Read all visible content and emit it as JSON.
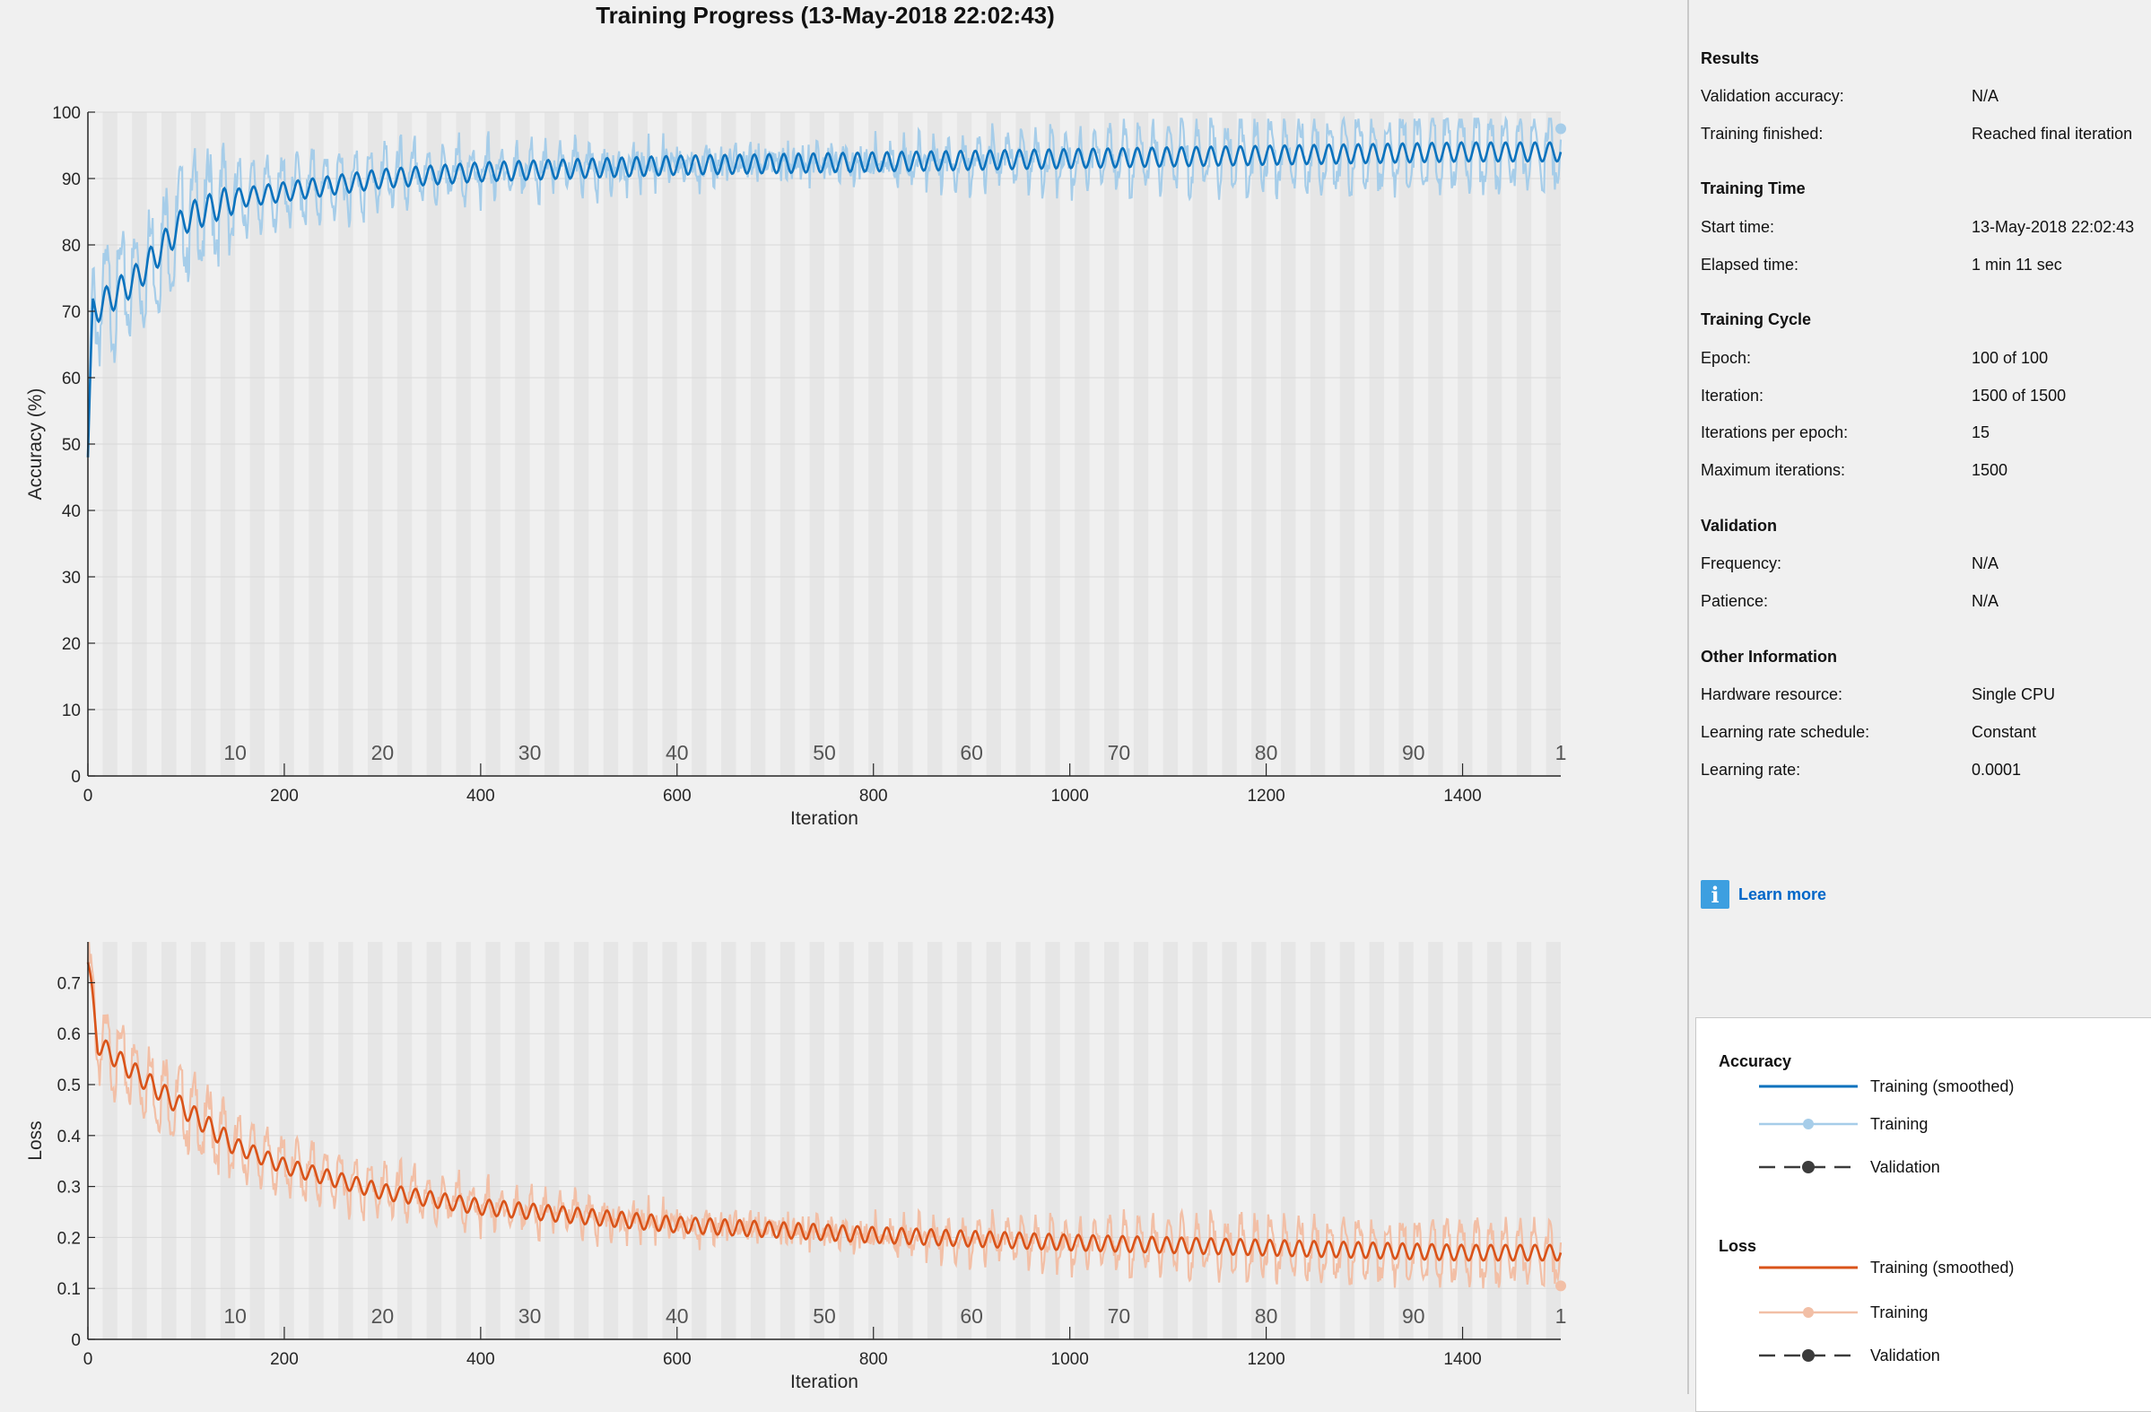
{
  "window_title": "Training Progress (13-May-2018 22:02:43)",
  "colors": {
    "accuracy_smoothed": "#0b72bd",
    "accuracy_raw": "#a6cde9",
    "loss_smoothed": "#d95319",
    "loss_raw": "#f2bfa6",
    "epoch_band": "#e6e6e6",
    "validation": "#3c3c3c",
    "link": "#0066c8"
  },
  "chart_data": [
    {
      "type": "line",
      "name": "accuracy",
      "xlabel": "Iteration",
      "ylabel": "Accuracy (%)",
      "xlim": [
        0,
        1500
      ],
      "ylim": [
        0,
        100
      ],
      "xticks": [
        0,
        200,
        400,
        600,
        800,
        1000,
        1200,
        1400
      ],
      "yticks": [
        0,
        10,
        20,
        30,
        40,
        50,
        60,
        70,
        80,
        90,
        100
      ],
      "epoch_labels": [
        "10",
        "20",
        "30",
        "40",
        "50",
        "60",
        "70",
        "80",
        "90",
        "1"
      ],
      "epochs": 100,
      "iterations_per_epoch": 15,
      "shape": {
        "start": 50,
        "end": 94,
        "rate": 0.012
      },
      "smoothed_anchor": [
        [
          0,
          48
        ],
        [
          5,
          70
        ],
        [
          50,
          75
        ],
        [
          100,
          84
        ],
        [
          150,
          87
        ],
        [
          200,
          88
        ],
        [
          300,
          90
        ],
        [
          400,
          91
        ],
        [
          600,
          92
        ],
        [
          800,
          92.5
        ],
        [
          1000,
          93
        ],
        [
          1200,
          93.5
        ],
        [
          1400,
          94
        ],
        [
          1500,
          94
        ]
      ],
      "series": [
        {
          "name": "Training (smoothed)"
        },
        {
          "name": "Training"
        }
      ],
      "final_point": {
        "x": 1500,
        "y": 97.5
      }
    },
    {
      "type": "line",
      "name": "loss",
      "xlabel": "Iteration",
      "ylabel": "Loss",
      "xlim": [
        0,
        1500
      ],
      "ylim": [
        0,
        0.78
      ],
      "xticks": [
        0,
        200,
        400,
        600,
        800,
        1000,
        1200,
        1400
      ],
      "yticks": [
        0,
        0.1,
        0.2,
        0.3,
        0.4,
        0.5,
        0.6,
        0.7
      ],
      "ytick_labels": [
        "0",
        "0.1",
        "0.2",
        "0.3",
        "0.4",
        "0.5",
        "0.6",
        "0.7"
      ],
      "epoch_labels": [
        "10",
        "20",
        "30",
        "40",
        "50",
        "60",
        "70",
        "80",
        "90",
        "1"
      ],
      "epochs": 100,
      "iterations_per_epoch": 15,
      "smoothed_anchor": [
        [
          0,
          0.74
        ],
        [
          10,
          0.58
        ],
        [
          50,
          0.52
        ],
        [
          100,
          0.45
        ],
        [
          150,
          0.38
        ],
        [
          200,
          0.34
        ],
        [
          300,
          0.29
        ],
        [
          400,
          0.26
        ],
        [
          600,
          0.225
        ],
        [
          800,
          0.205
        ],
        [
          1000,
          0.19
        ],
        [
          1200,
          0.18
        ],
        [
          1400,
          0.17
        ],
        [
          1500,
          0.17
        ]
      ],
      "series": [
        {
          "name": "Training (smoothed)"
        },
        {
          "name": "Training"
        }
      ],
      "final_point": {
        "x": 1500,
        "y": 0.105
      }
    }
  ],
  "info": {
    "results": {
      "title": "Results",
      "rows": [
        {
          "label": "Validation accuracy:",
          "value": "N/A"
        },
        {
          "label": "Training finished:",
          "value": "Reached final iteration"
        }
      ]
    },
    "training_time": {
      "title": "Training Time",
      "rows": [
        {
          "label": "Start time:",
          "value": "13-May-2018 22:02:43"
        },
        {
          "label": "Elapsed time:",
          "value": "1 min 11 sec"
        }
      ]
    },
    "training_cycle": {
      "title": "Training Cycle",
      "rows": [
        {
          "label": "Epoch:",
          "value": "100 of 100"
        },
        {
          "label": "Iteration:",
          "value": "1500 of 1500"
        },
        {
          "label": "Iterations per epoch:",
          "value": "15"
        },
        {
          "label": "Maximum iterations:",
          "value": "1500"
        }
      ]
    },
    "validation": {
      "title": "Validation",
      "rows": [
        {
          "label": "Frequency:",
          "value": "N/A"
        },
        {
          "label": "Patience:",
          "value": "N/A"
        }
      ]
    },
    "other": {
      "title": "Other Information",
      "rows": [
        {
          "label": "Hardware resource:",
          "value": "Single CPU"
        },
        {
          "label": "Learning rate schedule:",
          "value": "Constant"
        },
        {
          "label": "Learning rate:",
          "value": "0.0001"
        }
      ]
    }
  },
  "learn_more": {
    "label": "Learn more",
    "icon": "info-icon"
  },
  "legend": {
    "accuracy": {
      "title": "Accuracy",
      "items": [
        {
          "label": "Training (smoothed)"
        },
        {
          "label": "Training"
        },
        {
          "label": "Validation"
        }
      ]
    },
    "loss": {
      "title": "Loss",
      "items": [
        {
          "label": "Training (smoothed)"
        },
        {
          "label": "Training"
        },
        {
          "label": "Validation"
        }
      ]
    }
  }
}
